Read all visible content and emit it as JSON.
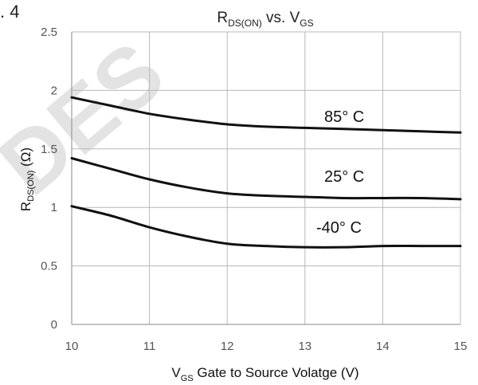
{
  "figure_label": ". 4",
  "watermark": "DES",
  "chart_data": {
    "type": "line",
    "title": {
      "main": "R",
      "main_sub": "DS(ON)",
      "middle": " vs. V",
      "end_sub": "GS"
    },
    "xlabel": {
      "main": "V",
      "sub": "GS",
      "rest": " Gate to Source Volatge (V)"
    },
    "ylabel": {
      "main": "R",
      "sub": "DS(ON)",
      "rest": " (Ω)"
    },
    "xlim": [
      10,
      15
    ],
    "ylim": [
      0,
      2.5
    ],
    "x_ticks": [
      "10",
      "11",
      "12",
      "13",
      "14",
      "15"
    ],
    "y_ticks": [
      "0",
      "0.5",
      "1",
      "1.5",
      "2",
      "2.5"
    ],
    "grid": true,
    "series": [
      {
        "name": "85° C",
        "x": [
          10,
          10.5,
          11,
          11.5,
          12,
          12.5,
          13,
          13.5,
          14,
          14.5,
          15
        ],
        "y": [
          1.94,
          1.87,
          1.8,
          1.75,
          1.71,
          1.69,
          1.68,
          1.67,
          1.66,
          1.65,
          1.64
        ]
      },
      {
        "name": "25° C",
        "x": [
          10,
          10.5,
          11,
          11.5,
          12,
          12.5,
          13,
          13.5,
          14,
          14.5,
          15
        ],
        "y": [
          1.42,
          1.33,
          1.24,
          1.17,
          1.12,
          1.1,
          1.09,
          1.08,
          1.08,
          1.08,
          1.07
        ]
      },
      {
        "name": "-40° C",
        "x": [
          10,
          10.5,
          11,
          11.5,
          12,
          12.5,
          13,
          13.5,
          14,
          14.5,
          15
        ],
        "y": [
          1.01,
          0.93,
          0.83,
          0.75,
          0.69,
          0.67,
          0.66,
          0.66,
          0.67,
          0.67,
          0.67
        ]
      }
    ]
  }
}
